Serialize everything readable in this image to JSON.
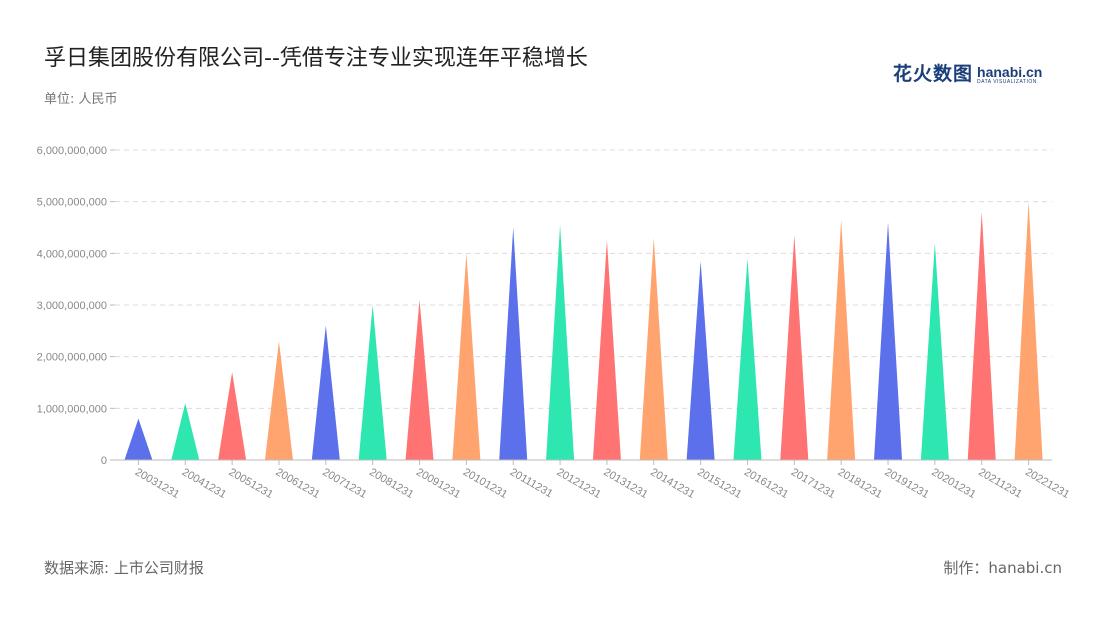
{
  "title": "孚日集团股份有限公司--凭借专注专业实现连年平稳增长",
  "unit": "单位: 人民币",
  "logo": {
    "cn": "花火数图",
    "en": "hanabi.cn",
    "en_sub": "DATA VISUALIZATION"
  },
  "footer": {
    "source": "数据来源: 上市公司财报",
    "maker": "制作：hanabi.cn"
  },
  "chart_data": {
    "type": "bar",
    "mark_shape": "triangle",
    "title": "孚日集团股份有限公司--凭借专注专业实现连年平稳增长",
    "ylabel": "",
    "xlabel": "",
    "ylim": [
      0,
      6000000000
    ],
    "yticks": [
      "0",
      "1,000,000,000",
      "2,000,000,000",
      "3,000,000,000",
      "4,000,000,000",
      "5,000,000,000",
      "6,000,000,000"
    ],
    "grid": true,
    "categories": [
      "20031231",
      "20041231",
      "20051231",
      "20061231",
      "20071231",
      "20081231",
      "20091231",
      "20101231",
      "20111231",
      "20121231",
      "20131231",
      "20141231",
      "20151231",
      "20161231",
      "20171231",
      "20181231",
      "20191231",
      "20201231",
      "20211231",
      "20221231"
    ],
    "values": [
      800000000,
      1100000000,
      1700000000,
      2300000000,
      2600000000,
      3000000000,
      3100000000,
      4000000000,
      4500000000,
      4550000000,
      4250000000,
      4300000000,
      3850000000,
      3900000000,
      4350000000,
      4650000000,
      4600000000,
      4200000000,
      4800000000,
      5000000000
    ],
    "colors": [
      "#5b70ea",
      "#2ee6b0",
      "#ff7373",
      "#ffa46f"
    ]
  }
}
